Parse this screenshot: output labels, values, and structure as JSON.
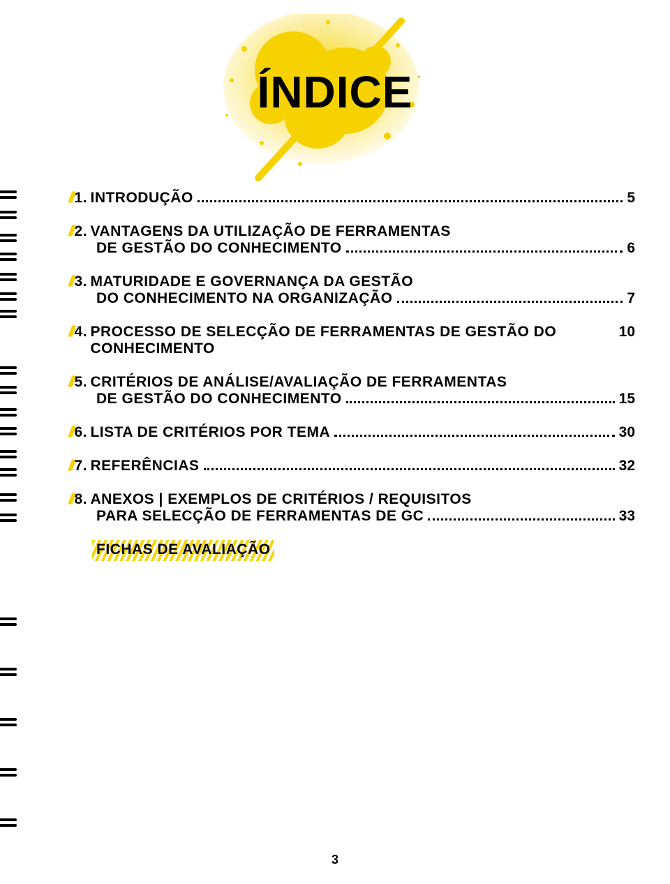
{
  "title": "ÍNDICE",
  "page_number": "3",
  "colors": {
    "accent": "#f6d200",
    "text": "#000000",
    "bg": "#ffffff"
  },
  "toc": [
    {
      "num": "1.",
      "label": "INTRODUÇÃO",
      "page": "5"
    },
    {
      "num": "2.",
      "label": "VANTAGENS DA UTILIZAÇÃO DE FERRAMENTAS",
      "cont": "DE GESTÃO DO CONHECIMENTO",
      "page": "6"
    },
    {
      "num": "3.",
      "label": "MATURIDADE E GOVERNANÇA DA GESTÃO",
      "cont": "DO CONHECIMENTO NA ORGANIZAÇÃO",
      "page": "7"
    },
    {
      "num": "4.",
      "label": "PROCESSO DE SELECÇÃO DE FERRAMENTAS DE GESTÃO DO CONHECIMENTO",
      "page": "10"
    },
    {
      "num": "5.",
      "label": "CRITÉRIOS DE ANÁLISE/AVALIAÇÃO DE FERRAMENTAS",
      "cont": "DE GESTÃO DO CONHECIMENTO",
      "page": "15"
    },
    {
      "num": "6.",
      "label": "LISTA DE CRITÉRIOS POR TEMA",
      "page": "30"
    },
    {
      "num": "7.",
      "label": "REFERÊNCIAS",
      "page": "32"
    },
    {
      "num": "8.",
      "label": "ANEXOS | EXEMPLOS DE CRITÉRIOS / REQUISITOS",
      "cont": "PARA SELECÇÃO DE FERRAMENTAS DE GC",
      "page": "33"
    }
  ],
  "subentry": "FICHAS DE AVALIAÇÃO",
  "ring_positions": [
    275,
    308,
    341,
    374,
    407,
    440,
    465,
    530,
    563,
    596,
    629,
    662,
    695,
    728,
    790,
    823,
    856,
    930,
    1004,
    1078,
    1152,
    1226
  ],
  "ring_positions_actual": [
    273,
    302,
    335,
    362,
    391,
    419,
    444,
    525,
    553,
    585,
    612,
    645,
    671,
    707,
    736,
    885,
    957,
    1029,
    1101,
    1173
  ]
}
